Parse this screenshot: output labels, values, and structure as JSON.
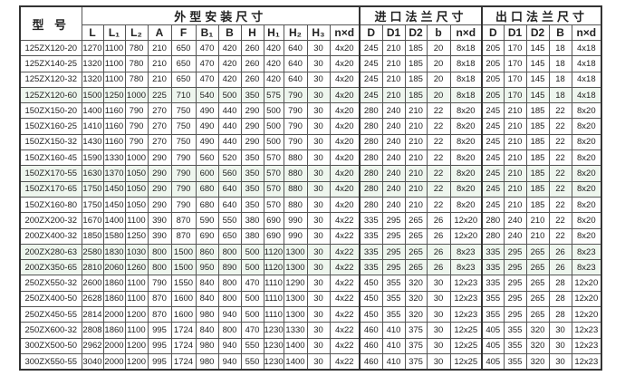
{
  "table": {
    "model_header": "型 号",
    "groups": [
      "外型安装尺寸",
      "进口法兰尺寸",
      "出口法兰尺寸"
    ],
    "columns": [
      "L",
      "L₁",
      "L₂",
      "A",
      "F",
      "B₁",
      "B",
      "H",
      "H₁",
      "H₂",
      "H₃",
      "n×d",
      "D",
      "D1",
      "D2",
      "b",
      "n×d",
      "D",
      "D1",
      "D2",
      "B",
      "n×d"
    ],
    "rows": [
      [
        "125ZX120-20",
        "1270",
        "1100",
        "780",
        "210",
        "650",
        "470",
        "420",
        "260",
        "420",
        "640",
        "30",
        "4x20",
        "245",
        "210",
        "185",
        "20",
        "8x18",
        "205",
        "170",
        "145",
        "18",
        "4x18"
      ],
      [
        "125ZX140-25",
        "1320",
        "1100",
        "780",
        "210",
        "650",
        "470",
        "420",
        "260",
        "420",
        "640",
        "30",
        "4x20",
        "245",
        "210",
        "185",
        "20",
        "8x18",
        "205",
        "170",
        "145",
        "18",
        "4x18"
      ],
      [
        "125ZX120-32",
        "1320",
        "1100",
        "780",
        "210",
        "650",
        "470",
        "420",
        "260",
        "420",
        "640",
        "30",
        "4x20",
        "245",
        "210",
        "185",
        "20",
        "8x18",
        "205",
        "170",
        "145",
        "18",
        "4x18"
      ],
      [
        "125ZX120-60",
        "1500",
        "1250",
        "1000",
        "225",
        "710",
        "540",
        "500",
        "350",
        "575",
        "790",
        "30",
        "4x20",
        "245",
        "210",
        "185",
        "20",
        "8x18",
        "205",
        "170",
        "145",
        "18",
        "4x18"
      ],
      [
        "150ZX150-20",
        "1400",
        "1160",
        "790",
        "270",
        "750",
        "490",
        "440",
        "290",
        "500",
        "790",
        "30",
        "4x20",
        "280",
        "240",
        "210",
        "22",
        "8x20",
        "245",
        "210",
        "185",
        "22",
        "8x20"
      ],
      [
        "150ZX160-25",
        "1410",
        "1160",
        "790",
        "270",
        "750",
        "490",
        "440",
        "290",
        "500",
        "790",
        "30",
        "4x20",
        "280",
        "240",
        "210",
        "22",
        "8x20",
        "245",
        "210",
        "185",
        "22",
        "8x20"
      ],
      [
        "150ZX150-32",
        "1430",
        "1160",
        "790",
        "270",
        "750",
        "490",
        "440",
        "290",
        "500",
        "790",
        "30",
        "4x20",
        "280",
        "240",
        "210",
        "22",
        "8x20",
        "245",
        "210",
        "185",
        "22",
        "8x20"
      ],
      [
        "150ZX160-45",
        "1590",
        "1330",
        "1000",
        "290",
        "790",
        "560",
        "520",
        "350",
        "570",
        "880",
        "30",
        "4x20",
        "280",
        "240",
        "210",
        "22",
        "8x20",
        "245",
        "210",
        "185",
        "22",
        "8x20"
      ],
      [
        "150ZX170-55",
        "1630",
        "1370",
        "1050",
        "290",
        "790",
        "600",
        "560",
        "350",
        "570",
        "880",
        "30",
        "4x20",
        "280",
        "240",
        "210",
        "22",
        "8x20",
        "245",
        "210",
        "185",
        "22",
        "8x20"
      ],
      [
        "150ZX170-65",
        "1750",
        "1450",
        "1050",
        "290",
        "790",
        "680",
        "640",
        "350",
        "570",
        "880",
        "30",
        "4x20",
        "280",
        "240",
        "210",
        "22",
        "8x20",
        "245",
        "210",
        "185",
        "22",
        "8x20"
      ],
      [
        "150ZX160-80",
        "1750",
        "1450",
        "1050",
        "290",
        "790",
        "680",
        "640",
        "350",
        "570",
        "880",
        "30",
        "4x20",
        "280",
        "240",
        "210",
        "22",
        "8x20",
        "245",
        "210",
        "185",
        "22",
        "8x20"
      ],
      [
        "200ZX200-32",
        "1670",
        "1400",
        "1100",
        "390",
        "870",
        "590",
        "550",
        "380",
        "690",
        "990",
        "30",
        "4x22",
        "335",
        "295",
        "265",
        "26",
        "12x20",
        "280",
        "240",
        "210",
        "22",
        "8x20"
      ],
      [
        "200ZX400-32",
        "1850",
        "1580",
        "1250",
        "390",
        "870",
        "690",
        "650",
        "380",
        "690",
        "990",
        "30",
        "4x22",
        "335",
        "295",
        "265",
        "26",
        "12x20",
        "280",
        "240",
        "210",
        "22",
        "8x20"
      ],
      [
        "200ZX280-63",
        "2580",
        "1830",
        "1030",
        "800",
        "1500",
        "860",
        "800",
        "500",
        "1120",
        "1300",
        "30",
        "4x22",
        "335",
        "295",
        "265",
        "26",
        "8x23",
        "335",
        "295",
        "265",
        "26",
        "8x23"
      ],
      [
        "200ZX350-65",
        "2810",
        "2060",
        "1260",
        "800",
        "1500",
        "950",
        "890",
        "500",
        "1120",
        "1300",
        "30",
        "4x22",
        "335",
        "295",
        "265",
        "26",
        "8x23",
        "335",
        "295",
        "265",
        "26",
        "8x23"
      ],
      [
        "250ZX550-32",
        "2600",
        "1860",
        "1100",
        "790",
        "1550",
        "840",
        "800",
        "470",
        "1110",
        "1290",
        "30",
        "4x22",
        "450",
        "355",
        "320",
        "30",
        "12x23",
        "335",
        "295",
        "265",
        "28",
        "12x20"
      ],
      [
        "250ZX400-50",
        "2628",
        "1860",
        "1100",
        "870",
        "1600",
        "840",
        "800",
        "500",
        "1110",
        "1300",
        "30",
        "4x22",
        "450",
        "355",
        "320",
        "30",
        "12x23",
        "355",
        "295",
        "265",
        "28",
        "12x20"
      ],
      [
        "250ZX450-55",
        "2814",
        "2000",
        "1200",
        "870",
        "1600",
        "980",
        "940",
        "500",
        "1110",
        "1300",
        "30",
        "4x22",
        "450",
        "355",
        "320",
        "30",
        "12x23",
        "355",
        "295",
        "265",
        "28",
        "12x20"
      ],
      [
        "250ZX600-32",
        "2808",
        "1860",
        "1100",
        "995",
        "1724",
        "840",
        "800",
        "470",
        "1230",
        "1330",
        "30",
        "4x22",
        "460",
        "410",
        "375",
        "30",
        "12x25",
        "405",
        "355",
        "320",
        "30",
        "12x23"
      ],
      [
        "300ZX500-50",
        "2962",
        "2000",
        "1200",
        "995",
        "1724",
        "980",
        "940",
        "550",
        "1230",
        "1400",
        "30",
        "4x22",
        "460",
        "410",
        "375",
        "30",
        "12x25",
        "405",
        "355",
        "320",
        "30",
        "12x23"
      ],
      [
        "300ZX550-55",
        "3040",
        "2000",
        "1200",
        "995",
        "1724",
        "980",
        "940",
        "550",
        "1230",
        "1400",
        "30",
        "4x22",
        "460",
        "410",
        "375",
        "30",
        "12x25",
        "405",
        "355",
        "320",
        "30",
        "12x23"
      ]
    ],
    "tinted_rows": [
      3,
      8,
      9,
      13,
      14
    ]
  }
}
